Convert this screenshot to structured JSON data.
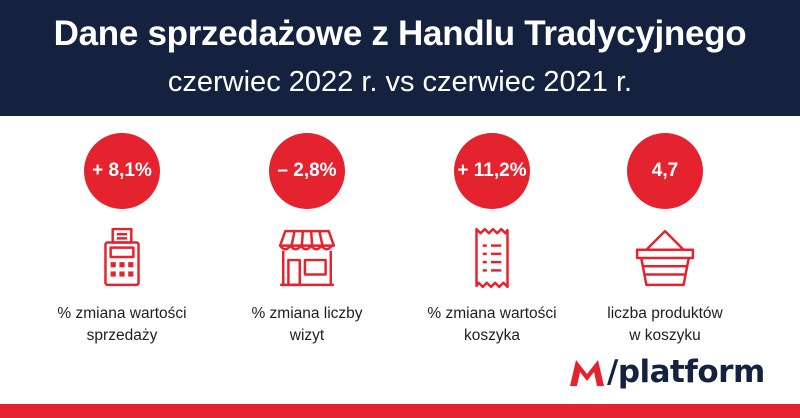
{
  "header": {
    "title": "Dane sprzedażowe z Handlu Tradycyjnego",
    "subtitle": "czerwiec 2022 r. vs czerwiec 2021 r."
  },
  "stats": [
    {
      "value": "+ 8,1%",
      "label_line1": "% zmiana wartości",
      "label_line2": "sprzedaży",
      "icon": "cash-register-icon"
    },
    {
      "value": "– 2,8%",
      "label_line1": "% zmiana liczby",
      "label_line2": "wizyt",
      "icon": "shop-icon"
    },
    {
      "value": "+ 11,2%",
      "label_line1": "% zmiana wartości",
      "label_line2": "koszyka",
      "icon": "receipt-icon"
    },
    {
      "value": "4,7",
      "label_line1": "liczba produktów",
      "label_line2": "w koszyku",
      "icon": "basket-icon"
    }
  ],
  "logo": {
    "text": "/platform"
  },
  "colors": {
    "accent": "#e5232e",
    "header_bg": "#14223f"
  }
}
